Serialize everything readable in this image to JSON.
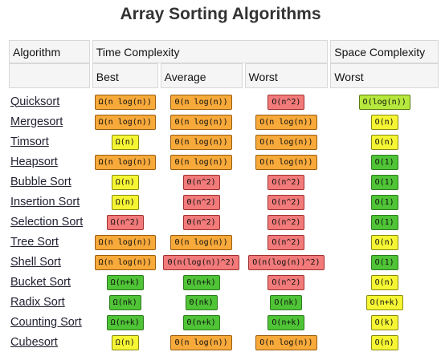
{
  "title": "Array Sorting Algorithms",
  "headers": {
    "algorithm": "Algorithm",
    "time_complexity": "Time Complexity",
    "space_complexity": "Space Complexity",
    "best": "Best",
    "average": "Average",
    "worst": "Worst",
    "space_worst": "Worst"
  },
  "colors": {
    "dark_green": "#4fc436",
    "light_green": "#b6e83d",
    "yellow": "#f5f534",
    "orange": "#f7a93a",
    "red": "#f27a7a"
  },
  "rows": [
    {
      "name": "Quicksort",
      "best": {
        "text": "Ω(n log(n))",
        "color": "or"
      },
      "avg": {
        "text": "Θ(n log(n))",
        "color": "or"
      },
      "worst": {
        "text": "O(n^2)",
        "color": "re"
      },
      "space": {
        "text": "O(log(n))",
        "color": "lg"
      }
    },
    {
      "name": "Mergesort",
      "best": {
        "text": "Ω(n log(n))",
        "color": "or"
      },
      "avg": {
        "text": "Θ(n log(n))",
        "color": "or"
      },
      "worst": {
        "text": "O(n log(n))",
        "color": "or"
      },
      "space": {
        "text": "O(n)",
        "color": "ye"
      }
    },
    {
      "name": "Timsort",
      "best": {
        "text": "Ω(n)",
        "color": "ye"
      },
      "avg": {
        "text": "Θ(n log(n))",
        "color": "or"
      },
      "worst": {
        "text": "O(n log(n))",
        "color": "or"
      },
      "space": {
        "text": "O(n)",
        "color": "ye"
      }
    },
    {
      "name": "Heapsort",
      "best": {
        "text": "Ω(n log(n))",
        "color": "or"
      },
      "avg": {
        "text": "Θ(n log(n))",
        "color": "or"
      },
      "worst": {
        "text": "O(n log(n))",
        "color": "or"
      },
      "space": {
        "text": "O(1)",
        "color": "dg"
      }
    },
    {
      "name": "Bubble Sort",
      "best": {
        "text": "Ω(n)",
        "color": "ye"
      },
      "avg": {
        "text": "Θ(n^2)",
        "color": "re"
      },
      "worst": {
        "text": "O(n^2)",
        "color": "re"
      },
      "space": {
        "text": "O(1)",
        "color": "dg"
      }
    },
    {
      "name": "Insertion Sort",
      "best": {
        "text": "Ω(n)",
        "color": "ye"
      },
      "avg": {
        "text": "Θ(n^2)",
        "color": "re"
      },
      "worst": {
        "text": "O(n^2)",
        "color": "re"
      },
      "space": {
        "text": "O(1)",
        "color": "dg"
      }
    },
    {
      "name": "Selection Sort",
      "best": {
        "text": "Ω(n^2)",
        "color": "re"
      },
      "avg": {
        "text": "Θ(n^2)",
        "color": "re"
      },
      "worst": {
        "text": "O(n^2)",
        "color": "re"
      },
      "space": {
        "text": "O(1)",
        "color": "dg"
      }
    },
    {
      "name": "Tree Sort",
      "best": {
        "text": "Ω(n log(n))",
        "color": "or"
      },
      "avg": {
        "text": "Θ(n log(n))",
        "color": "or"
      },
      "worst": {
        "text": "O(n^2)",
        "color": "re"
      },
      "space": {
        "text": "O(n)",
        "color": "ye"
      }
    },
    {
      "name": "Shell Sort",
      "best": {
        "text": "Ω(n log(n))",
        "color": "or"
      },
      "avg": {
        "text": "Θ(n(log(n))^2)",
        "color": "re"
      },
      "worst": {
        "text": "O(n(log(n))^2)",
        "color": "re"
      },
      "space": {
        "text": "O(1)",
        "color": "dg"
      }
    },
    {
      "name": "Bucket Sort",
      "best": {
        "text": "Ω(n+k)",
        "color": "dg"
      },
      "avg": {
        "text": "Θ(n+k)",
        "color": "dg"
      },
      "worst": {
        "text": "O(n^2)",
        "color": "re"
      },
      "space": {
        "text": "O(n)",
        "color": "ye"
      }
    },
    {
      "name": "Radix Sort",
      "best": {
        "text": "Ω(nk)",
        "color": "dg"
      },
      "avg": {
        "text": "Θ(nk)",
        "color": "dg"
      },
      "worst": {
        "text": "O(nk)",
        "color": "dg"
      },
      "space": {
        "text": "O(n+k)",
        "color": "ye"
      }
    },
    {
      "name": "Counting Sort",
      "best": {
        "text": "Ω(n+k)",
        "color": "dg"
      },
      "avg": {
        "text": "Θ(n+k)",
        "color": "dg"
      },
      "worst": {
        "text": "O(n+k)",
        "color": "dg"
      },
      "space": {
        "text": "O(k)",
        "color": "ye"
      }
    },
    {
      "name": "Cubesort",
      "best": {
        "text": "Ω(n)",
        "color": "ye"
      },
      "avg": {
        "text": "Θ(n log(n))",
        "color": "or"
      },
      "worst": {
        "text": "O(n log(n))",
        "color": "or"
      },
      "space": {
        "text": "O(n)",
        "color": "ye"
      }
    }
  ]
}
